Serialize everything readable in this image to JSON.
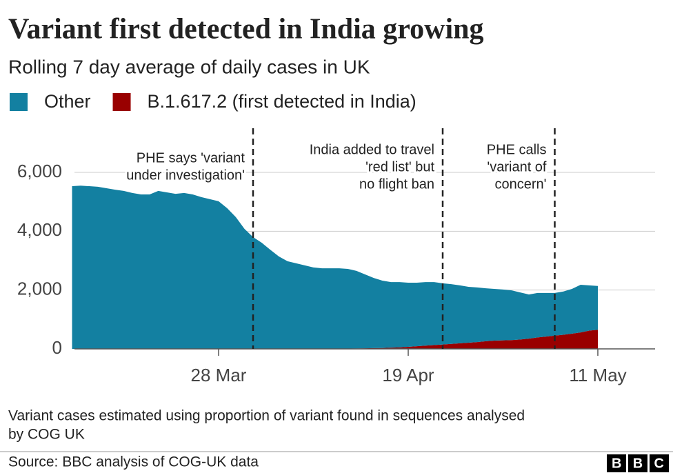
{
  "chart_data": {
    "type": "stacked_area",
    "title": "Variant first detected in India growing",
    "subtitle": "Rolling 7 day average of daily cases in UK",
    "x": [
      "11 Mar",
      "12 Mar",
      "13 Mar",
      "14 Mar",
      "15 Mar",
      "16 Mar",
      "17 Mar",
      "18 Mar",
      "19 Mar",
      "20 Mar",
      "21 Mar",
      "22 Mar",
      "23 Mar",
      "24 Mar",
      "25 Mar",
      "26 Mar",
      "27 Mar",
      "28 Mar",
      "29 Mar",
      "30 Mar",
      "31 Mar",
      "1 Apr",
      "2 Apr",
      "3 Apr",
      "4 Apr",
      "5 Apr",
      "6 Apr",
      "7 Apr",
      "8 Apr",
      "9 Apr",
      "10 Apr",
      "11 Apr",
      "12 Apr",
      "13 Apr",
      "14 Apr",
      "15 Apr",
      "16 Apr",
      "17 Apr",
      "18 Apr",
      "19 Apr",
      "20 Apr",
      "21 Apr",
      "22 Apr",
      "23 Apr",
      "24 Apr",
      "25 Apr",
      "26 Apr",
      "27 Apr",
      "28 Apr",
      "29 Apr",
      "30 Apr",
      "1 May",
      "2 May",
      "3 May",
      "4 May",
      "5 May",
      "6 May",
      "7 May",
      "8 May",
      "9 May",
      "10 May",
      "11 May"
    ],
    "series": [
      {
        "name": "Other",
        "color": "#1380a1",
        "values": [
          5530,
          5550,
          5530,
          5510,
          5460,
          5410,
          5370,
          5300,
          5250,
          5250,
          5370,
          5320,
          5270,
          5300,
          5250,
          5160,
          5090,
          5020,
          4780,
          4480,
          4080,
          3800,
          3610,
          3370,
          3140,
          2980,
          2910,
          2840,
          2770,
          2740,
          2740,
          2740,
          2710,
          2635,
          2510,
          2385,
          2290,
          2230,
          2220,
          2180,
          2160,
          2160,
          2140,
          2080,
          2030,
          1970,
          1900,
          1860,
          1800,
          1760,
          1730,
          1690,
          1600,
          1500,
          1510,
          1480,
          1450,
          1470,
          1520,
          1620,
          1540,
          1490
        ]
      },
      {
        "name": "B.1.617.2 (first detected in India)",
        "color": "#990000",
        "values": [
          0,
          0,
          0,
          0,
          0,
          0,
          0,
          0,
          0,
          0,
          0,
          0,
          0,
          0,
          0,
          0,
          0,
          0,
          0,
          0,
          0,
          0,
          0,
          0,
          0,
          0,
          0,
          0,
          0,
          0,
          0,
          0,
          10,
          15,
          20,
          25,
          30,
          40,
          50,
          70,
          90,
          110,
          130,
          150,
          170,
          190,
          210,
          230,
          260,
          280,
          290,
          300,
          320,
          350,
          390,
          420,
          450,
          480,
          520,
          560,
          620,
          650
        ]
      }
    ],
    "ylim": [
      0,
      7500
    ],
    "yticks": [
      0,
      {
        "value": 2000,
        "label": "2,000"
      },
      {
        "value": 4000,
        "label": "4,000"
      },
      {
        "value": 6000,
        "label": "6,000"
      }
    ],
    "xticks": [
      "28 Mar",
      "19 Apr",
      "11 May"
    ],
    "grid": true,
    "legend": "top",
    "annotations": [
      {
        "x": "1 Apr",
        "lines": [
          "PHE says 'variant",
          "under investigation'"
        ]
      },
      {
        "x": "23 Apr",
        "lines": [
          "India added to travel",
          "'red list' but",
          "no flight ban"
        ]
      },
      {
        "x": "6 May",
        "lines": [
          "PHE calls",
          "'variant of",
          "concern'"
        ]
      }
    ],
    "note": [
      "Variant cases estimated using proportion of variant found in sequences analysed",
      "by COG UK"
    ],
    "source": "Source: BBC analysis of COG-UK data",
    "logo": "BBC"
  }
}
